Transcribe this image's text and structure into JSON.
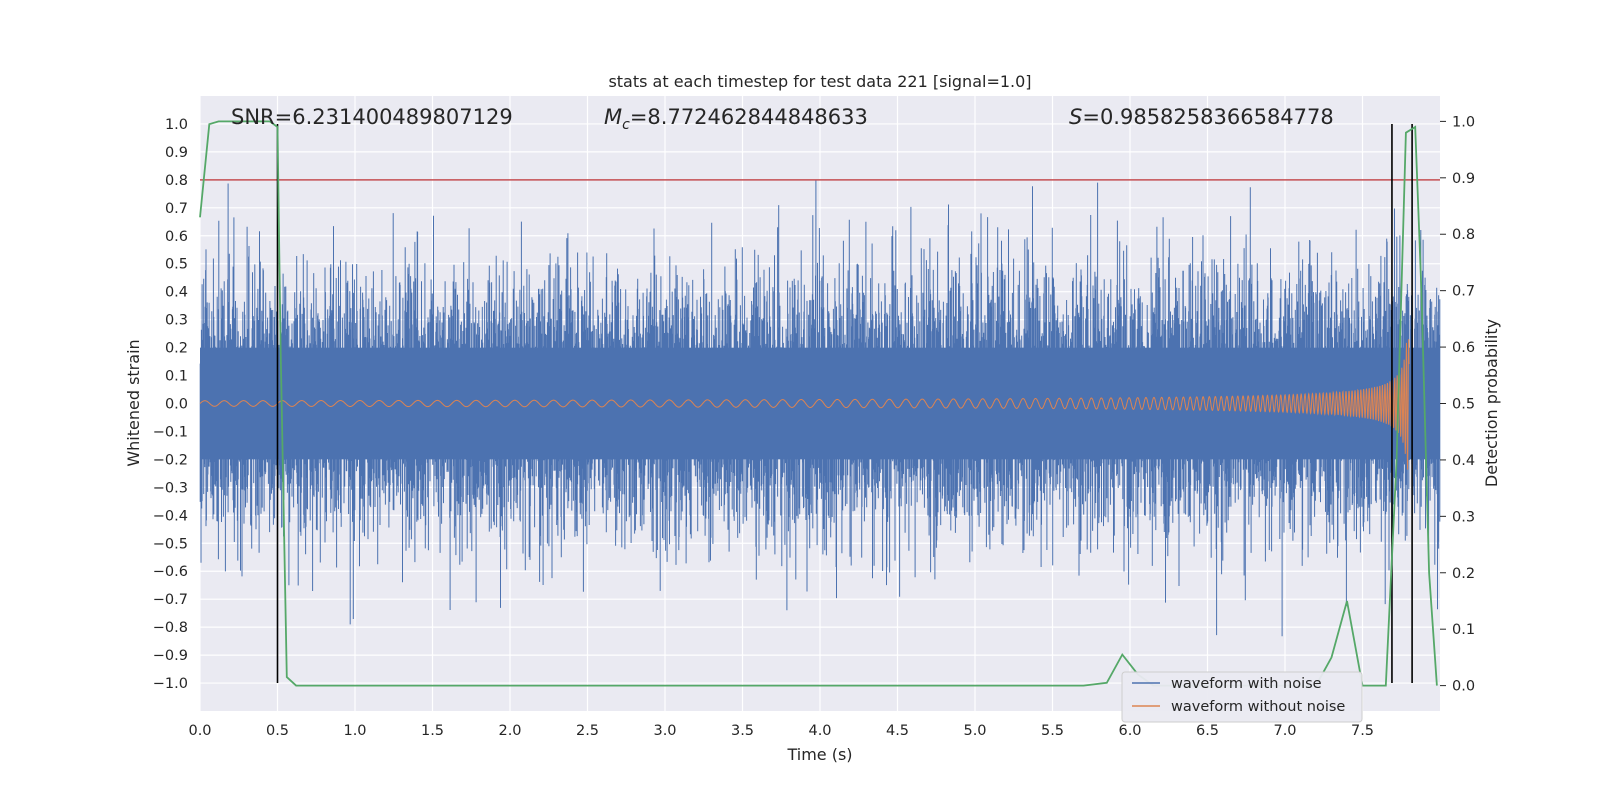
{
  "chart_data": {
    "type": "line",
    "title": "stats at each timestep for test data 221 [signal=1.0]",
    "xlabel": "Time (s)",
    "ylabel": "Whitened strain",
    "ylabel_right": "Detection probability",
    "xlim": [
      0,
      8
    ],
    "ylim": [
      -1.1,
      1.1
    ],
    "ylim_right": [
      -0.045,
      1.045
    ],
    "x_ticks": [
      "0.0",
      "0.5",
      "1.0",
      "1.5",
      "2.0",
      "2.5",
      "3.0",
      "3.5",
      "4.0",
      "4.5",
      "5.0",
      "5.5",
      "6.0",
      "6.5",
      "7.0",
      "7.5"
    ],
    "y_ticks": [
      "1.0",
      "0.9",
      "0.8",
      "0.7",
      "0.6",
      "0.5",
      "0.4",
      "0.3",
      "0.2",
      "0.1",
      "0.0",
      "−0.1",
      "−0.2",
      "−0.3",
      "−0.4",
      "−0.5",
      "−0.6",
      "−0.7",
      "−0.8",
      "−0.9",
      "−1.0"
    ],
    "y_ticks_right": [
      "1.0",
      "0.9",
      "0.8",
      "0.7",
      "0.6",
      "0.5",
      "0.4",
      "0.3",
      "0.2",
      "0.1",
      "0.0"
    ],
    "grid": true,
    "legend_position": "lower-right",
    "annotations": {
      "snr": "SNR=6.231400489807129",
      "mc_symbol": "M",
      "mc_sub": "c",
      "mc_value": "=8.772462844848633",
      "s_symbol": "S",
      "s_value": "=0.9858258366584778"
    },
    "series": [
      {
        "name": "waveform with noise",
        "color": "#4c72b0",
        "envelope": "random noise, typical amplitude about ±0.3, peaks up to about 0.8"
      },
      {
        "name": "waveform without noise",
        "color": "#dd8452",
        "chirp": {
          "start_amplitude": 0.01,
          "peak_time": 7.78,
          "peak_amplitude": 0.24,
          "end_time": 7.8
        }
      },
      {
        "name": "",
        "axis": "right",
        "color": "#55a868",
        "x": [
          0.0,
          0.06,
          0.12,
          0.2,
          0.3,
          0.4,
          0.45,
          0.5,
          0.52,
          0.56,
          0.62,
          1.0,
          3.0,
          5.0,
          5.7,
          5.85,
          5.95,
          6.05,
          6.15,
          6.3,
          6.8,
          7.2,
          7.3,
          7.4,
          7.5,
          7.58,
          7.65,
          7.72,
          7.78,
          7.84,
          7.88,
          7.93,
          7.98
        ],
        "y": [
          0.83,
          0.995,
          1.0,
          1.0,
          1.0,
          1.0,
          1.0,
          0.99,
          0.6,
          0.015,
          0.0,
          0.0,
          0.0,
          0.0,
          0.0,
          0.005,
          0.055,
          0.02,
          0.0,
          0.0,
          0.0,
          0.0,
          0.05,
          0.15,
          0.0,
          0.0,
          0.0,
          0.4,
          0.98,
          0.99,
          0.7,
          0.2,
          0.0
        ]
      }
    ],
    "threshold_line": {
      "y": 0.8,
      "color": "#c44e52"
    },
    "vertical_lines": {
      "x": [
        0.5,
        7.69,
        7.82
      ],
      "y_range": [
        -1.0,
        1.0
      ],
      "color": "#000000"
    },
    "legend": [
      "waveform with noise",
      "waveform without noise"
    ]
  }
}
